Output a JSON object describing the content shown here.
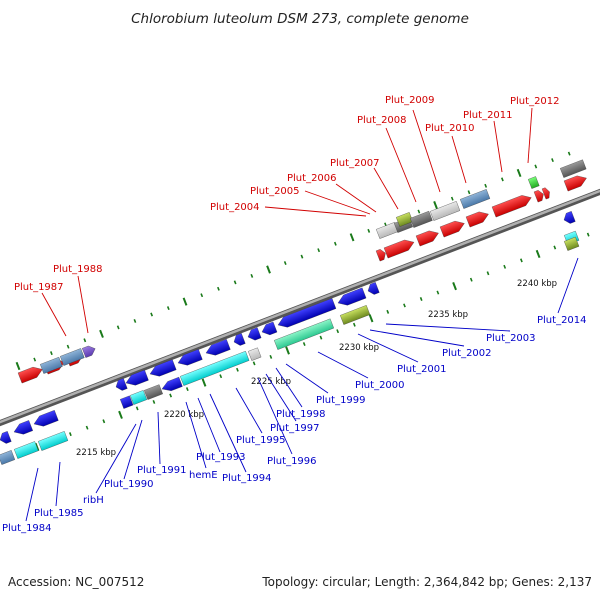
{
  "header": {
    "title": "Chlorobium luteolum DSM 273, complete genome"
  },
  "footer": {
    "accession": "Accession: NC_007512",
    "summary": "Topology: circular; Length: 2,364,842 bp; Genes: 2,137"
  },
  "scale": [
    "2215 kbp",
    "2220 kbp",
    "2225 kbp",
    "2230 kbp",
    "2235 kbp",
    "2240 kbp"
  ],
  "labels_forward": [
    "Plut_1987",
    "Plut_1988",
    "Plut_2004",
    "Plut_2005",
    "Plut_2006",
    "Plut_2007",
    "Plut_2008",
    "Plut_2009",
    "Plut_2010",
    "Plut_2011",
    "Plut_2012"
  ],
  "labels_reverse": [
    "Plut_1984",
    "Plut_1985",
    "ribH",
    "Plut_1990",
    "Plut_1991",
    "hemE",
    "Plut_1993",
    "Plut_1994",
    "Plut_1995",
    "Plut_1996",
    "Plut_1997",
    "Plut_1998",
    "Plut_1999",
    "Plut_2000",
    "Plut_2001",
    "Plut_2002",
    "Plut_2003",
    "Plut_2014"
  ],
  "colors": {
    "forward_cds": "#ff0000",
    "reverse_cds": "#0000ee",
    "forward_label": "#d10000",
    "reverse_label": "#0000c8",
    "backbone": "#8a8a8a",
    "tick": "#1a7a1a"
  }
}
